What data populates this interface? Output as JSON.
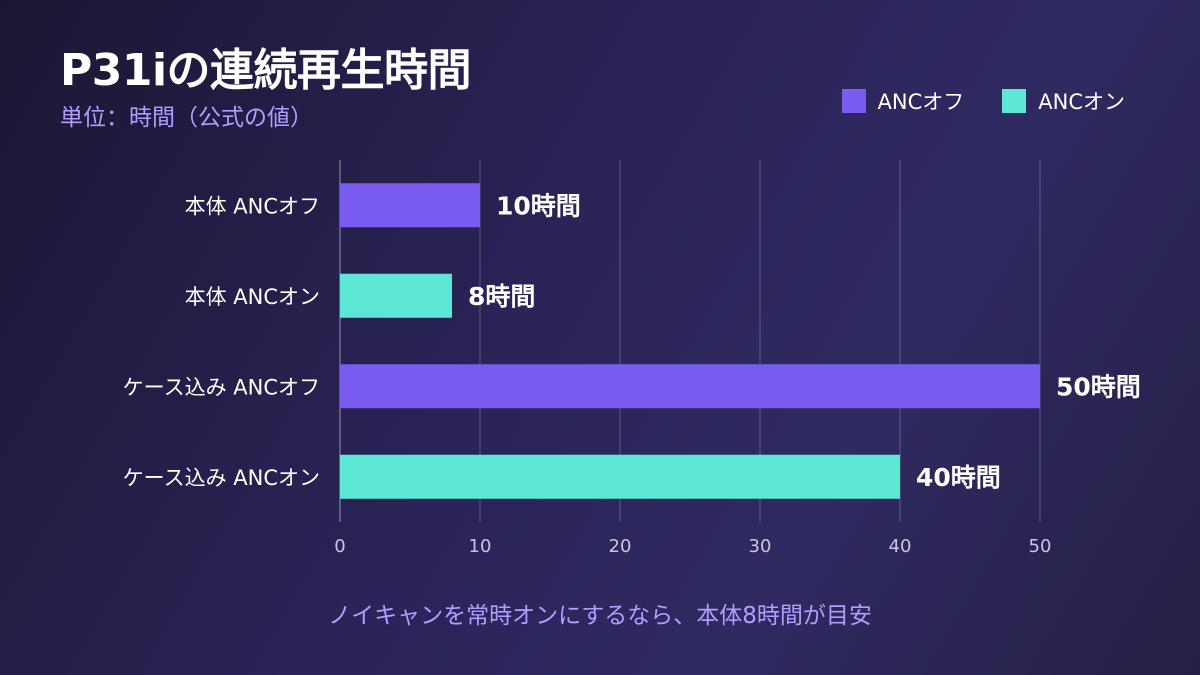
{
  "chart_data": {
    "type": "bar",
    "orientation": "horizontal",
    "title": "P31iの連続再生時間",
    "subtitle": "単位：時間（公式の値）",
    "categories": [
      "本体 ANCオフ",
      "本体 ANCオン",
      "ケース込み ANCオフ",
      "ケース込み ANCオン"
    ],
    "values": [
      10,
      8,
      50,
      40
    ],
    "bar_series": [
      "ANCオフ",
      "ANCオン",
      "ANCオフ",
      "ANCオン"
    ],
    "data_labels": [
      "10時間",
      "8時間",
      "50時間",
      "40時間"
    ],
    "legend": [
      {
        "name": "ANCオフ",
        "color": "#7b5cf0"
      },
      {
        "name": "ANCオン",
        "color": "#5de8d6"
      }
    ],
    "legend_position": "top-right",
    "xlim": [
      0,
      50
    ],
    "xticks": [
      0,
      10,
      20,
      30,
      40,
      50
    ],
    "grid": true,
    "annotation": "ノイキャンを常時オンにするなら、本体8時間が目安"
  }
}
